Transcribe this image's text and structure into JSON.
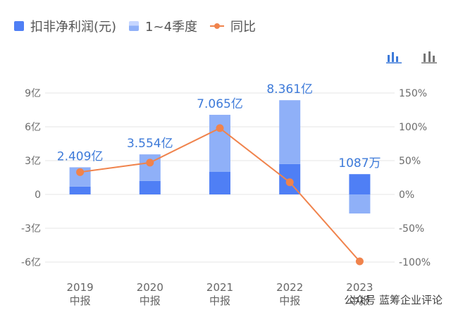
{
  "legend": [
    {
      "label": "扣非净利润(元)",
      "icon": "solid-square"
    },
    {
      "label": "1~4季度",
      "icon": "stacked-square"
    },
    {
      "label": "同比",
      "icon": "line-dot"
    }
  ],
  "toolbar": {
    "icons": [
      "bar-chart-icon",
      "bar-chart-alt-icon"
    ]
  },
  "watermark": "公众号 蓝筹企业评论",
  "colors": {
    "primary": "#4f7ff5",
    "secondary": "#8fb0f8",
    "line": "#f0834c",
    "label": "#3d7ad9",
    "grid": "#e6e6e6"
  },
  "chart_data": {
    "type": "bar",
    "categories": [
      "2019 中报",
      "2020 中报",
      "2021 中报",
      "2022 中报",
      "2023 中报"
    ],
    "category_lines": [
      [
        "2019",
        "中报"
      ],
      [
        "2020",
        "中报"
      ],
      [
        "2021",
        "中报"
      ],
      [
        "2022",
        "中报"
      ],
      [
        "2023",
        "中报"
      ]
    ],
    "series": [
      {
        "name": "扣非净利润(元)",
        "type": "bar",
        "values": [
          2.409,
          3.554,
          7.065,
          8.361,
          0.1087
        ],
        "unit": "亿"
      },
      {
        "name": "1~4季度",
        "type": "bar-stack",
        "q1_values": [
          0.7,
          1.2,
          2.0,
          2.7,
          1.8
        ],
        "q2_values": [
          1.709,
          2.354,
          5.065,
          5.661,
          -1.6913
        ],
        "unit": "亿"
      },
      {
        "name": "同比",
        "type": "line",
        "axis": "right",
        "values": [
          33,
          47,
          98,
          18,
          -99
        ],
        "unit": "%"
      }
    ],
    "data_labels": [
      "2.409亿",
      "3.554亿",
      "7.065亿",
      "8.361亿",
      "1087万"
    ],
    "y_left": {
      "ticks": [
        9,
        6,
        3,
        0,
        -3,
        -6
      ],
      "tick_labels": [
        "9亿",
        "6亿",
        "3亿",
        "0",
        "-3亿",
        "-6亿"
      ],
      "range": [
        -6,
        9
      ]
    },
    "y_right": {
      "ticks": [
        150,
        100,
        50,
        0,
        -50,
        -100
      ],
      "tick_labels": [
        "150%",
        "100%",
        "50%",
        "0%",
        "-50%",
        "-100%"
      ],
      "range": [
        -100,
        150
      ]
    },
    "grid": true,
    "legend_position": "top-left"
  }
}
